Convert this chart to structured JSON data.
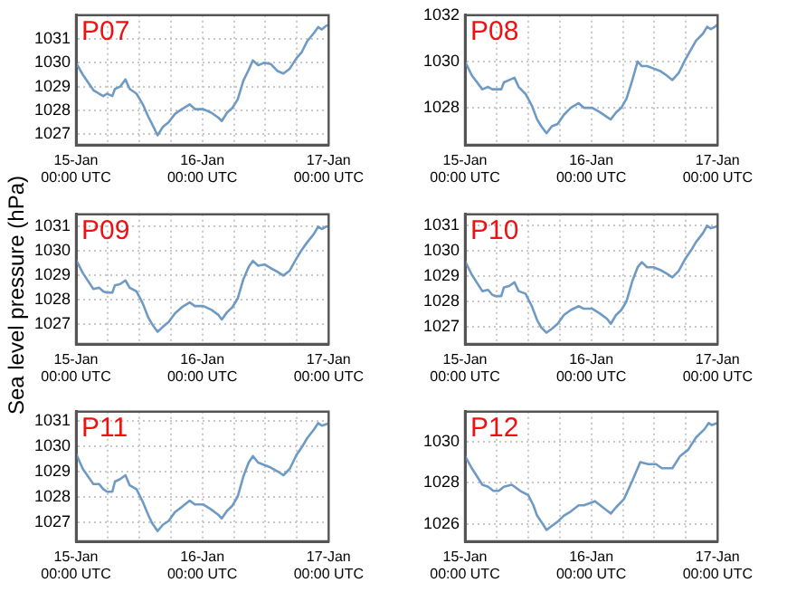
{
  "chart_data": [
    {
      "type": "line",
      "title": "P07",
      "ylabel": "Sea level pressure (hPa)",
      "x": [
        "--01-15T00:00",
        "--01-15T01:18",
        "--01-15T03:18",
        "--01-15T04:24",
        "--01-15T05:12",
        "--01-15T05:54",
        "--01-15T06:54",
        "--01-15T07:24",
        "--01-15T08:24",
        "--01-15T09:24",
        "--01-15T10:12",
        "--01-15T11:30",
        "--01-15T12:42",
        "--01-15T13:42",
        "--01-15T14:30",
        "--01-15T15:30",
        "--01-15T16:30",
        "--01-15T17:36",
        "--01-15T18:48",
        "--01-15T20:06",
        "--01-15T21:36",
        "--01-15T22:36",
        "--01-16T00:12",
        "--01-16T01:42",
        "--01-16T03:00",
        "--01-16T03:42",
        "--01-16T04:42",
        "--01-16T05:42",
        "--01-16T06:42",
        "--01-16T07:48",
        "--01-16T08:48",
        "--01-16T09:36",
        "--01-16T10:36",
        "--01-16T11:48",
        "--01-16T13:00",
        "--01-16T14:18",
        "--01-16T15:24",
        "--01-16T16:36",
        "--01-16T17:54",
        "--01-16T18:54",
        "--01-16T19:54",
        "--01-16T21:12",
        "--01-16T22:00",
        "--01-16T22:42",
        "--01-16T23:30",
        "--01-17T00:00"
      ],
      "series": [
        {
          "color": "#6f9ac4",
          "values": [
            1030.0,
            1029.5,
            1028.85,
            1028.7,
            1028.6,
            1028.7,
            1028.6,
            1028.9,
            1029.0,
            1029.3,
            1028.9,
            1028.7,
            1028.25,
            1027.75,
            1027.4,
            1026.95,
            1027.3,
            1027.5,
            1027.85,
            1028.05,
            1028.25,
            1028.05,
            1028.05,
            1027.9,
            1027.7,
            1027.55,
            1027.9,
            1028.1,
            1028.45,
            1029.25,
            1029.7,
            1030.1,
            1029.9,
            1030.0,
            1029.95,
            1029.65,
            1029.55,
            1029.75,
            1030.2,
            1030.45,
            1030.9,
            1031.25,
            1031.5,
            1031.4,
            1031.55,
            1031.6
          ]
        }
      ],
      "xlim": [
        "--01-15T00:00",
        "--01-17T00:00"
      ],
      "xticks": [
        {
          "value": "--01-15T00:00",
          "label": "15-Jan\n00:00 UTC"
        },
        {
          "value": "--01-15T06:00",
          "label": null
        },
        {
          "value": "--01-15T12:00",
          "label": null
        },
        {
          "value": "--01-15T18:00",
          "label": null
        },
        {
          "value": "--01-16T00:00",
          "label": "16-Jan\n00:00 UTC"
        },
        {
          "value": "--01-16T06:00",
          "label": null
        },
        {
          "value": "--01-16T12:00",
          "label": null
        },
        {
          "value": "--01-16T18:00",
          "label": null
        },
        {
          "value": "--01-17T00:00",
          "label": "17-Jan\n00:00 UTC"
        }
      ],
      "ylim": [
        1026.55,
        1032
      ],
      "yticks": [
        1027,
        1028,
        1029,
        1030,
        1031
      ],
      "grid": true,
      "marker": "none",
      "line_style": "solid",
      "legend": false
    },
    {
      "type": "line",
      "title": "P08",
      "x": [
        "--01-15T00:00",
        "--01-15T01:18",
        "--01-15T03:18",
        "--01-15T04:24",
        "--01-15T05:12",
        "--01-15T05:54",
        "--01-15T06:54",
        "--01-15T07:24",
        "--01-15T08:24",
        "--01-15T09:24",
        "--01-15T10:12",
        "--01-15T11:30",
        "--01-15T12:42",
        "--01-15T13:42",
        "--01-15T14:30",
        "--01-15T15:30",
        "--01-15T16:30",
        "--01-15T17:36",
        "--01-15T18:48",
        "--01-15T20:06",
        "--01-15T21:36",
        "--01-15T22:36",
        "--01-16T00:12",
        "--01-16T01:42",
        "--01-16T03:00",
        "--01-16T03:42",
        "--01-16T04:42",
        "--01-16T05:42",
        "--01-16T06:42",
        "--01-16T07:48",
        "--01-16T08:48",
        "--01-16T09:36",
        "--01-16T10:36",
        "--01-16T11:48",
        "--01-16T13:00",
        "--01-16T14:18",
        "--01-16T15:24",
        "--01-16T16:36",
        "--01-16T17:54",
        "--01-16T18:54",
        "--01-16T19:54",
        "--01-16T21:12",
        "--01-16T22:00",
        "--01-16T22:42",
        "--01-16T23:30",
        "--01-17T00:00"
      ],
      "series": [
        {
          "color": "#6f9ac4",
          "values": [
            1030.0,
            1029.4,
            1028.8,
            1028.9,
            1028.8,
            1028.8,
            1028.8,
            1029.1,
            1029.2,
            1029.3,
            1028.9,
            1028.6,
            1028.1,
            1027.5,
            1027.2,
            1026.9,
            1027.2,
            1027.3,
            1027.7,
            1028.0,
            1028.2,
            1028.0,
            1028.0,
            1027.8,
            1027.6,
            1027.5,
            1027.8,
            1028.0,
            1028.4,
            1029.2,
            1030.0,
            1029.8,
            1029.8,
            1029.7,
            1029.6,
            1029.4,
            1029.2,
            1029.5,
            1030.1,
            1030.5,
            1030.9,
            1031.2,
            1031.5,
            1031.4,
            1031.5,
            1031.6
          ]
        }
      ],
      "xlim": [
        "--01-15T00:00",
        "--01-17T00:00"
      ],
      "xticks": [
        {
          "value": "--01-15T00:00",
          "label": "15-Jan\n00:00 UTC"
        },
        {
          "value": "--01-15T06:00",
          "label": null
        },
        {
          "value": "--01-15T12:00",
          "label": null
        },
        {
          "value": "--01-15T18:00",
          "label": null
        },
        {
          "value": "--01-16T00:00",
          "label": "16-Jan\n00:00 UTC"
        },
        {
          "value": "--01-16T06:00",
          "label": null
        },
        {
          "value": "--01-16T12:00",
          "label": null
        },
        {
          "value": "--01-16T18:00",
          "label": null
        },
        {
          "value": "--01-17T00:00",
          "label": "17-Jan\n00:00 UTC"
        }
      ],
      "ylim": [
        1026.4,
        1032
      ],
      "yticks": [
        1028,
        1030,
        1032
      ],
      "grid": true,
      "marker": "none",
      "line_style": "solid",
      "legend": false
    },
    {
      "type": "line",
      "title": "P09",
      "x": [
        "--01-15T00:00",
        "--01-15T01:18",
        "--01-15T03:18",
        "--01-15T04:24",
        "--01-15T05:12",
        "--01-15T05:54",
        "--01-15T06:54",
        "--01-15T07:24",
        "--01-15T08:24",
        "--01-15T09:24",
        "--01-15T10:12",
        "--01-15T11:30",
        "--01-15T12:42",
        "--01-15T13:42",
        "--01-15T14:30",
        "--01-15T15:30",
        "--01-15T16:30",
        "--01-15T17:36",
        "--01-15T18:48",
        "--01-15T20:06",
        "--01-15T21:36",
        "--01-15T22:36",
        "--01-16T00:12",
        "--01-16T01:42",
        "--01-16T03:00",
        "--01-16T03:42",
        "--01-16T04:42",
        "--01-16T05:42",
        "--01-16T06:42",
        "--01-16T07:48",
        "--01-16T08:48",
        "--01-16T09:36",
        "--01-16T10:36",
        "--01-16T11:48",
        "--01-16T13:00",
        "--01-16T14:18",
        "--01-16T15:24",
        "--01-16T16:36",
        "--01-16T17:54",
        "--01-16T18:54",
        "--01-16T19:54",
        "--01-16T21:12",
        "--01-16T22:00",
        "--01-16T22:42",
        "--01-16T23:30",
        "--01-17T00:00"
      ],
      "series": [
        {
          "color": "#6f9ac4",
          "values": [
            1029.65,
            1029.1,
            1028.45,
            1028.5,
            1028.35,
            1028.3,
            1028.3,
            1028.6,
            1028.65,
            1028.8,
            1028.5,
            1028.35,
            1027.85,
            1027.3,
            1027.0,
            1026.7,
            1026.9,
            1027.1,
            1027.45,
            1027.7,
            1027.9,
            1027.75,
            1027.75,
            1027.6,
            1027.4,
            1027.2,
            1027.5,
            1027.7,
            1028.05,
            1028.85,
            1029.35,
            1029.6,
            1029.4,
            1029.45,
            1029.3,
            1029.15,
            1029.0,
            1029.2,
            1029.7,
            1030.05,
            1030.35,
            1030.7,
            1031.0,
            1030.9,
            1031.0,
            1031.0
          ]
        }
      ],
      "xlim": [
        "--01-15T00:00",
        "--01-17T00:00"
      ],
      "xticks": [
        {
          "value": "--01-15T00:00",
          "label": "15-Jan\n00:00 UTC"
        },
        {
          "value": "--01-15T06:00",
          "label": null
        },
        {
          "value": "--01-15T12:00",
          "label": null
        },
        {
          "value": "--01-15T18:00",
          "label": null
        },
        {
          "value": "--01-16T00:00",
          "label": "16-Jan\n00:00 UTC"
        },
        {
          "value": "--01-16T06:00",
          "label": null
        },
        {
          "value": "--01-16T12:00",
          "label": null
        },
        {
          "value": "--01-16T18:00",
          "label": null
        },
        {
          "value": "--01-17T00:00",
          "label": "17-Jan\n00:00 UTC"
        }
      ],
      "ylim": [
        1026.2,
        1031.5
      ],
      "yticks": [
        1027,
        1028,
        1029,
        1030,
        1031
      ],
      "grid": true,
      "marker": "none",
      "line_style": "solid",
      "legend": false
    },
    {
      "type": "line",
      "title": "P10",
      "x": [
        "--01-15T00:00",
        "--01-15T01:18",
        "--01-15T03:18",
        "--01-15T04:24",
        "--01-15T05:12",
        "--01-15T05:54",
        "--01-15T06:54",
        "--01-15T07:24",
        "--01-15T08:24",
        "--01-15T09:24",
        "--01-15T10:12",
        "--01-15T11:30",
        "--01-15T12:42",
        "--01-15T13:42",
        "--01-15T14:30",
        "--01-15T15:30",
        "--01-15T16:30",
        "--01-15T17:36",
        "--01-15T18:48",
        "--01-15T20:06",
        "--01-15T21:36",
        "--01-15T22:36",
        "--01-16T00:12",
        "--01-16T01:42",
        "--01-16T03:00",
        "--01-16T03:42",
        "--01-16T04:42",
        "--01-16T05:42",
        "--01-16T06:42",
        "--01-16T07:48",
        "--01-16T08:48",
        "--01-16T09:36",
        "--01-16T10:36",
        "--01-16T11:48",
        "--01-16T13:00",
        "--01-16T14:18",
        "--01-16T15:24",
        "--01-16T16:36",
        "--01-16T17:54",
        "--01-16T18:54",
        "--01-16T19:54",
        "--01-16T21:12",
        "--01-16T22:00",
        "--01-16T22:42",
        "--01-16T23:30",
        "--01-17T00:00"
      ],
      "series": [
        {
          "color": "#6f9ac4",
          "values": [
            1029.6,
            1029.05,
            1028.4,
            1028.45,
            1028.25,
            1028.2,
            1028.2,
            1028.55,
            1028.6,
            1028.75,
            1028.4,
            1028.3,
            1027.8,
            1027.25,
            1026.95,
            1026.75,
            1026.9,
            1027.1,
            1027.45,
            1027.65,
            1027.8,
            1027.7,
            1027.7,
            1027.5,
            1027.3,
            1027.1,
            1027.45,
            1027.65,
            1028.0,
            1028.8,
            1029.35,
            1029.55,
            1029.35,
            1029.35,
            1029.25,
            1029.1,
            1028.95,
            1029.2,
            1029.7,
            1030.0,
            1030.35,
            1030.7,
            1031.0,
            1030.9,
            1030.95,
            1031.0
          ]
        }
      ],
      "xlim": [
        "--01-15T00:00",
        "--01-17T00:00"
      ],
      "xticks": [
        {
          "value": "--01-15T00:00",
          "label": "15-Jan\n00:00 UTC"
        },
        {
          "value": "--01-15T06:00",
          "label": null
        },
        {
          "value": "--01-15T12:00",
          "label": null
        },
        {
          "value": "--01-15T18:00",
          "label": null
        },
        {
          "value": "--01-16T00:00",
          "label": "16-Jan\n00:00 UTC"
        },
        {
          "value": "--01-16T06:00",
          "label": null
        },
        {
          "value": "--01-16T12:00",
          "label": null
        },
        {
          "value": "--01-16T18:00",
          "label": null
        },
        {
          "value": "--01-17T00:00",
          "label": "17-Jan\n00:00 UTC"
        }
      ],
      "ylim": [
        1026.3,
        1031.45
      ],
      "yticks": [
        1027,
        1028,
        1029,
        1030,
        1031
      ],
      "grid": true,
      "marker": "none",
      "line_style": "solid",
      "legend": false
    },
    {
      "type": "line",
      "title": "P11",
      "x": [
        "--01-15T00:00",
        "--01-15T01:18",
        "--01-15T03:18",
        "--01-15T04:24",
        "--01-15T05:12",
        "--01-15T05:54",
        "--01-15T06:54",
        "--01-15T07:24",
        "--01-15T08:24",
        "--01-15T09:24",
        "--01-15T10:12",
        "--01-15T11:30",
        "--01-15T12:42",
        "--01-15T13:42",
        "--01-15T14:30",
        "--01-15T15:30",
        "--01-15T16:30",
        "--01-15T17:36",
        "--01-15T18:48",
        "--01-15T20:06",
        "--01-15T21:36",
        "--01-15T22:36",
        "--01-16T00:12",
        "--01-16T01:42",
        "--01-16T03:00",
        "--01-16T03:42",
        "--01-16T04:42",
        "--01-16T05:42",
        "--01-16T06:42",
        "--01-16T07:48",
        "--01-16T08:48",
        "--01-16T09:36",
        "--01-16T10:36",
        "--01-16T11:48",
        "--01-16T13:00",
        "--01-16T14:18",
        "--01-16T15:24",
        "--01-16T16:36",
        "--01-16T17:54",
        "--01-16T18:54",
        "--01-16T19:54",
        "--01-16T21:12",
        "--01-16T22:00",
        "--01-16T22:42",
        "--01-16T23:30",
        "--01-17T00:00"
      ],
      "series": [
        {
          "color": "#6f9ac4",
          "values": [
            1029.7,
            1029.1,
            1028.5,
            1028.5,
            1028.3,
            1028.2,
            1028.2,
            1028.6,
            1028.7,
            1028.85,
            1028.45,
            1028.3,
            1027.8,
            1027.3,
            1026.95,
            1026.65,
            1026.9,
            1027.05,
            1027.4,
            1027.6,
            1027.85,
            1027.7,
            1027.7,
            1027.5,
            1027.3,
            1027.15,
            1027.45,
            1027.65,
            1028.0,
            1028.8,
            1029.35,
            1029.6,
            1029.35,
            1029.25,
            1029.15,
            1029.0,
            1028.85,
            1029.1,
            1029.65,
            1029.95,
            1030.3,
            1030.65,
            1030.9,
            1030.8,
            1030.85,
            1030.9
          ]
        }
      ],
      "xlim": [
        "--01-15T00:00",
        "--01-17T00:00"
      ],
      "xticks": [
        {
          "value": "--01-15T00:00",
          "label": "15-Jan\n00:00 UTC"
        },
        {
          "value": "--01-15T06:00",
          "label": null
        },
        {
          "value": "--01-15T12:00",
          "label": null
        },
        {
          "value": "--01-15T18:00",
          "label": null
        },
        {
          "value": "--01-16T00:00",
          "label": "16-Jan\n00:00 UTC"
        },
        {
          "value": "--01-16T06:00",
          "label": null
        },
        {
          "value": "--01-16T12:00",
          "label": null
        },
        {
          "value": "--01-16T18:00",
          "label": null
        },
        {
          "value": "--01-17T00:00",
          "label": "17-Jan\n00:00 UTC"
        }
      ],
      "ylim": [
        1026.25,
        1031.35
      ],
      "yticks": [
        1027,
        1028,
        1029,
        1030,
        1031
      ],
      "grid": true,
      "marker": "none",
      "line_style": "solid",
      "legend": false
    },
    {
      "type": "line",
      "title": "P12",
      "x": [
        "--01-15T00:00",
        "--01-15T01:18",
        "--01-15T03:18",
        "--01-15T04:24",
        "--01-15T05:24",
        "--01-15T06:24",
        "--01-15T07:24",
        "--01-15T08:54",
        "--01-15T10:30",
        "--01-15T12:00",
        "--01-15T13:00",
        "--01-15T13:42",
        "--01-15T14:30",
        "--01-15T15:30",
        "--01-15T16:30",
        "--01-15T17:36",
        "--01-15T18:48",
        "--01-15T20:06",
        "--01-15T21:36",
        "--01-15T22:36",
        "--01-16T00:42",
        "--01-16T02:12",
        "--01-16T03:42",
        "--01-16T04:42",
        "--01-16T06:12",
        "--01-16T07:48",
        "--01-16T09:18",
        "--01-16T10:48",
        "--01-16T12:18",
        "--01-16T13:24",
        "--01-16T15:24",
        "--01-16T16:54",
        "--01-16T18:24",
        "--01-16T19:54",
        "--01-16T21:30",
        "--01-16T22:18",
        "--01-16T22:54",
        "--01-17T00:00"
      ],
      "series": [
        {
          "color": "#6f9ac4",
          "values": [
            1029.3,
            1028.7,
            1027.9,
            1027.8,
            1027.6,
            1027.6,
            1027.8,
            1027.9,
            1027.6,
            1027.4,
            1026.9,
            1026.4,
            1026.1,
            1025.7,
            1025.9,
            1026.1,
            1026.4,
            1026.6,
            1026.9,
            1026.9,
            1027.1,
            1026.8,
            1026.5,
            1026.8,
            1027.2,
            1028.1,
            1029.0,
            1028.9,
            1028.9,
            1028.7,
            1028.7,
            1029.3,
            1029.6,
            1030.2,
            1030.6,
            1030.9,
            1030.8,
            1030.9
          ]
        }
      ],
      "xlim": [
        "--01-15T00:00",
        "--01-17T00:00"
      ],
      "xticks": [
        {
          "value": "--01-15T00:00",
          "label": "15-Jan\n00:00 UTC"
        },
        {
          "value": "--01-15T06:00",
          "label": null
        },
        {
          "value": "--01-15T12:00",
          "label": null
        },
        {
          "value": "--01-15T18:00",
          "label": null
        },
        {
          "value": "--01-16T00:00",
          "label": "16-Jan\n00:00 UTC"
        },
        {
          "value": "--01-16T06:00",
          "label": null
        },
        {
          "value": "--01-16T12:00",
          "label": null
        },
        {
          "value": "--01-16T18:00",
          "label": null
        },
        {
          "value": "--01-17T00:00",
          "label": "17-Jan\n00:00 UTC"
        }
      ],
      "ylim": [
        1025.15,
        1031.45
      ],
      "yticks": [
        1026,
        1028,
        1030
      ],
      "grid": true,
      "marker": "none",
      "line_style": "solid",
      "legend": false
    }
  ]
}
